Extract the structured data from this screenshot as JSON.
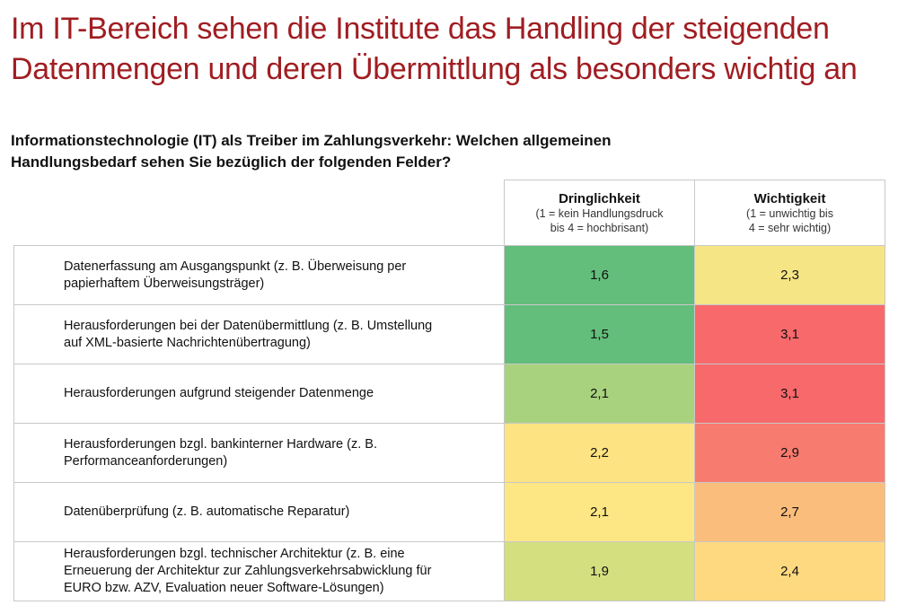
{
  "title": [
    "Im IT-Bereich sehen die Institute das Handling der steigenden",
    "Datenmengen und deren Übermittlung als besonders wichtig an"
  ],
  "question": [
    "Informationstechnologie (IT) als Treiber im Zahlungsverkehr: Welchen allgemeinen",
    "Handlungsbedarf sehen Sie bezüglich der folgenden Felder?"
  ],
  "columns": [
    {
      "label": "Dringlichkeit",
      "scale": [
        "(1 = kein Handlungsdruck",
        "bis 4 = hochbrisant)"
      ]
    },
    {
      "label": "Wichtigkeit",
      "scale": [
        "(1 = unwichtig bis",
        "4 = sehr wichtig)"
      ]
    }
  ],
  "rows": [
    {
      "label": [
        "Datenerfassung am Ausgangspunkt (z. B. Überweisung per",
        "papierhaftem Überweisungsträger)"
      ],
      "values": [
        "1,6",
        "2,3"
      ],
      "colors": [
        "#63be7b",
        "#f6e585"
      ]
    },
    {
      "label": [
        "Herausforderungen bei der Datenübermittlung (z. B. Umstellung",
        "auf XML-basierte Nachrichtenübertragung)"
      ],
      "values": [
        "1,5",
        "3,1"
      ],
      "colors": [
        "#63be7b",
        "#f8696b"
      ]
    },
    {
      "label": [
        "Herausforderungen aufgrund steigender Datenmenge"
      ],
      "values": [
        "2,1",
        "3,1"
      ],
      "colors": [
        "#a9d27f",
        "#f8696b"
      ]
    },
    {
      "label": [
        "Herausforderungen bzgl. bankinterner Hardware (z. B.",
        "Performanceanforderungen)"
      ],
      "values": [
        "2,2",
        "2,9"
      ],
      "colors": [
        "#fee382",
        "#f77b6f"
      ]
    },
    {
      "label": [
        "Datenüberprüfung (z. B. automatische Reparatur)"
      ],
      "values": [
        "2,1",
        "2,7"
      ],
      "colors": [
        "#fde784",
        "#fbbd7b"
      ]
    },
    {
      "label": [
        "Herausforderungen bzgl. technischer Architektur (z. B. eine",
        "Erneuerung der Architektur zur Zahlungsverkehrsabwicklung für",
        "EURO bzw. AZV, Evaluation neuer Software-Lösungen)"
      ],
      "values": [
        "1,9",
        "2,4"
      ],
      "colors": [
        "#d4df80",
        "#fed980"
      ]
    }
  ]
}
